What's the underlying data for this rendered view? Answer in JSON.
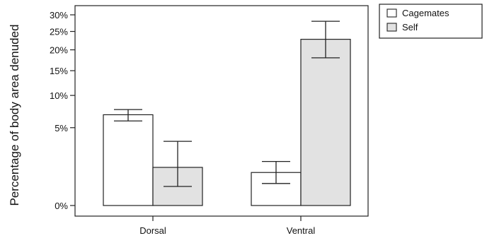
{
  "chart_data": {
    "type": "bar",
    "title": "",
    "xlabel": "",
    "ylabel": "Percentage of body area denuded",
    "y_scale": "square-root",
    "yticks": [
      {
        "value": 0,
        "label": "0%"
      },
      {
        "value": 5,
        "label": "5%"
      },
      {
        "value": 10,
        "label": "10%"
      },
      {
        "value": 15,
        "label": "15%"
      },
      {
        "value": 20,
        "label": "20%"
      },
      {
        "value": 25,
        "label": "25%"
      },
      {
        "value": 30,
        "label": "30%"
      }
    ],
    "ylim": [
      0,
      33
    ],
    "categories": [
      "Dorsal",
      "Ventral"
    ],
    "series": [
      {
        "name": "Cagemates",
        "color": "#ffffff",
        "values": [
          6.8,
          0.9
        ],
        "error_low": [
          5.9,
          0.4
        ],
        "error_high": [
          7.6,
          1.6
        ]
      },
      {
        "name": "Self",
        "color": "#e2e2e2",
        "values": [
          1.2,
          22.8
        ],
        "error_low": [
          0.3,
          18.0
        ],
        "error_high": [
          3.4,
          28.0
        ]
      }
    ],
    "legend_position": "top-right",
    "grid": false
  }
}
